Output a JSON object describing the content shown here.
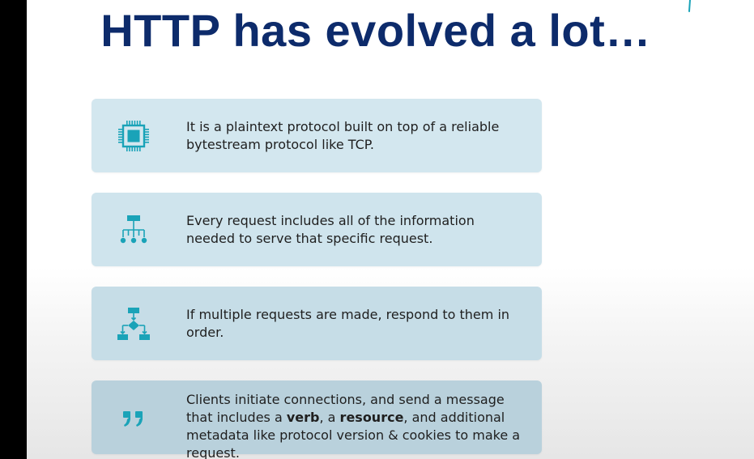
{
  "slide": {
    "title": "HTTP has evolved a lot…",
    "accent_color": "#1aa3b8",
    "title_color": "#0d2b6b",
    "cards": [
      {
        "icon": "processor-chip-icon",
        "text": "It is a plaintext protocol built on top of a reliable bytestream protocol like TCP."
      },
      {
        "icon": "hierarchy-tree-icon",
        "text": "Every request includes all of the information needed to serve that specific request."
      },
      {
        "icon": "flowchart-icon",
        "text": "If multiple requests are made, respond to them in order."
      },
      {
        "icon": "quotation-marks-icon",
        "text_parts": {
          "p1": "Clients initiate connections, and send a message that includes a ",
          "verb": "verb",
          "p2": ", a ",
          "resource": "resource",
          "p3": ", and additional metadata like protocol version & cookies to make a request."
        }
      }
    ]
  }
}
